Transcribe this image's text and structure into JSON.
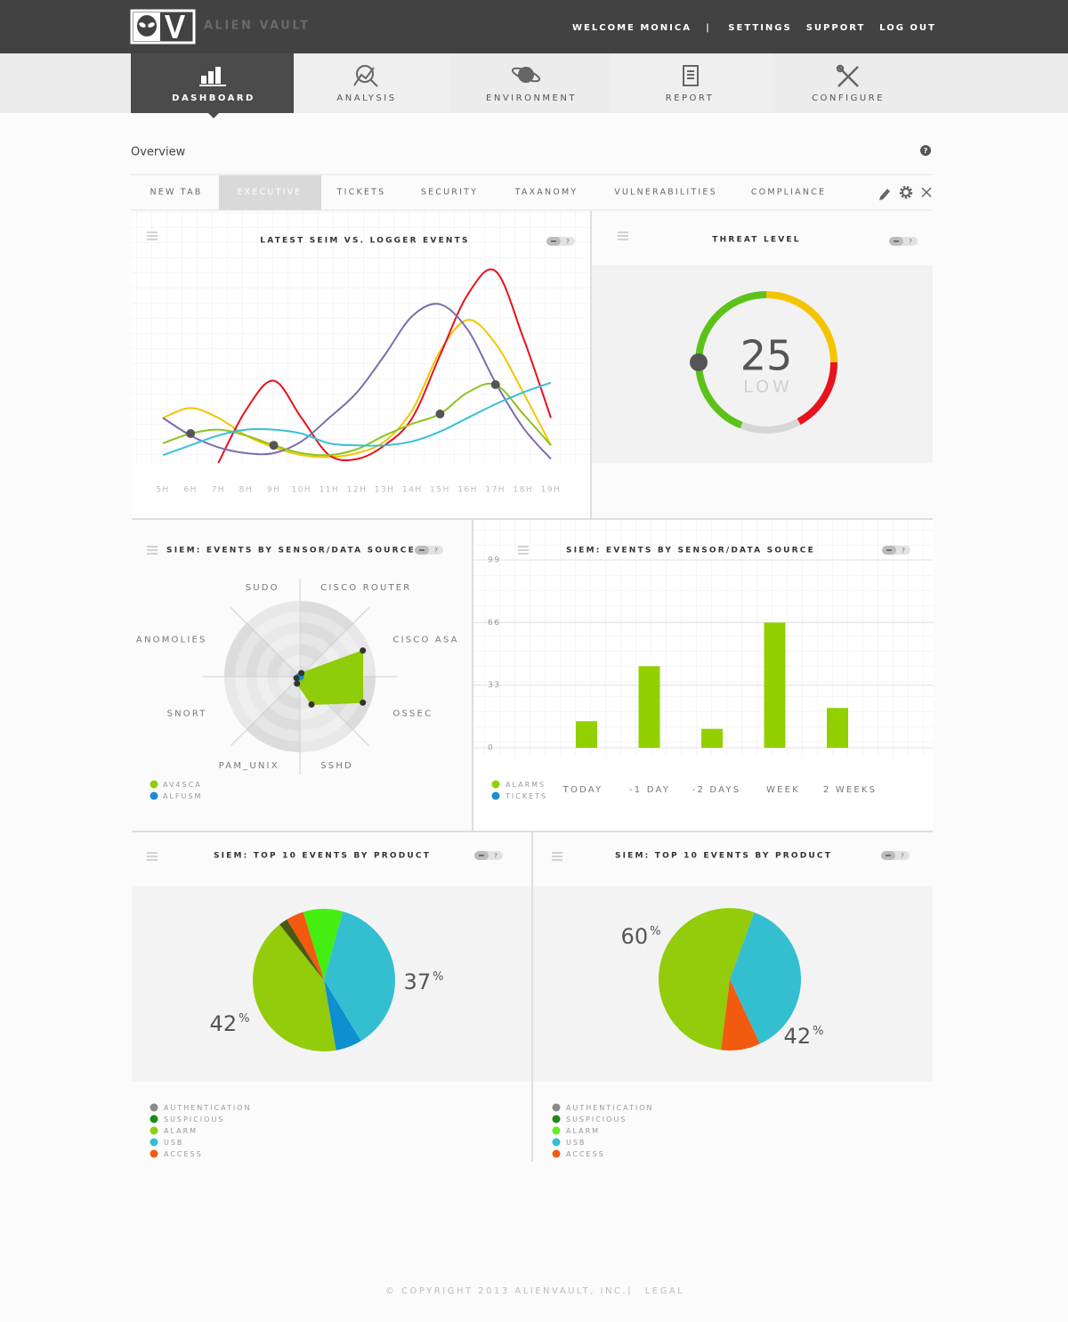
{
  "header": {
    "brand": "ALIEN VAULT",
    "links": [
      "WELCOME MONICA",
      "|",
      "SETTINGS",
      "SUPPORT",
      "LOG OUT"
    ]
  },
  "nav": [
    "DASHBOARD",
    "ANALYSIS",
    "ENVIRONMENT",
    "REPORT",
    "CONFIGURE"
  ],
  "overview": "Overview",
  "help": "?",
  "tabs": [
    "NEW TAB",
    "EXECUTIVE",
    "TICKETS",
    "SECURITY",
    "TAXANOMY",
    "VULNERABILITIES",
    "COMPLIANCE"
  ],
  "chart_data": [
    {
      "type": "line",
      "title": "LATEST SEIM VS. LOGGER EVENTS",
      "categories": [
        "5H",
        "6H",
        "7H",
        "8H",
        "9H",
        "10H",
        "11H",
        "12H",
        "13H",
        "14H",
        "15H",
        "16H",
        "17H",
        "18H",
        "19H"
      ],
      "ylim": [
        0,
        100
      ],
      "series": [
        {
          "color": "#f2c500",
          "values": [
            23,
            28,
            23,
            14,
            8,
            4,
            3,
            5,
            11,
            27,
            57,
            73,
            61,
            36,
            9
          ]
        },
        {
          "color": "#e8121c",
          "values": [
            null,
            null,
            0,
            27,
            42,
            23,
            4,
            2,
            9,
            23,
            55,
            86,
            98,
            64,
            23
          ]
        },
        {
          "color": "#7b6db0",
          "values": [
            23,
            14,
            8,
            5,
            5,
            11,
            23,
            36,
            55,
            75,
            81,
            68,
            41,
            18,
            2
          ]
        },
        {
          "color": "#8dc21f",
          "values": [
            10,
            15,
            17,
            14,
            9,
            5,
            4,
            7,
            14,
            20,
            25,
            36,
            40,
            25,
            9
          ]
        },
        {
          "color": "#37c0d8",
          "values": [
            4,
            9,
            14,
            17,
            17,
            15,
            10,
            9,
            9,
            11,
            16,
            23,
            30,
            36,
            41
          ]
        }
      ]
    },
    {
      "type": "gauge",
      "title": "THREAT LEVEL",
      "value": 25,
      "label": "LOW",
      "ylim": [
        0,
        100
      ]
    },
    {
      "type": "radar",
      "title": "SIEM: EVENTS BY SENSOR/DATA SOURCE",
      "categories": [
        "SUDO",
        "CISCO ROUTER",
        "CISCO ASA",
        "OSSEC",
        "SSHD",
        "PAM_UNIX",
        "SNORT",
        "ANOMOLIES"
      ],
      "rlim": [
        0,
        100
      ],
      "series": [
        {
          "name": "AV4SCA",
          "color": "#8fcc0a",
          "values": [
            0,
            5,
            90,
            90,
            40,
            10,
            5,
            0
          ]
        },
        {
          "name": "ALFUSM",
          "color": "#1a8fd0",
          "values": [
            0,
            0,
            0,
            0,
            0,
            0,
            0,
            0
          ]
        }
      ]
    },
    {
      "type": "bar",
      "title": "SIEM: EVENTS BY SENSOR/DATA SOURCE",
      "categories": [
        "TODAY",
        "-1 DAY",
        "-2 DAYS",
        "WEEK",
        "2 WEEKS"
      ],
      "ylim": [
        0,
        99
      ],
      "yticks": [
        0,
        33,
        66,
        99
      ],
      "grid": true,
      "series": [
        {
          "name": "ALARMS",
          "color": "#92d000",
          "values": [
            14,
            43,
            10,
            66,
            21
          ]
        },
        {
          "name": "TICKETS",
          "color": "#1a8fd0",
          "values": [
            null,
            null,
            null,
            null,
            null
          ]
        }
      ]
    },
    {
      "type": "pie",
      "title": "SIEM: TOP 10 EVENTS BY PRODUCT",
      "unit": "%",
      "values": [
        9,
        37,
        6,
        42,
        2,
        4
      ],
      "colors": [
        "#44ee11",
        "#33bfd0",
        "#0e8fd0",
        "#92cc0a",
        "#4b5a12",
        "#f25a10"
      ],
      "legend": [
        {
          "name": "AUTHENTICATION",
          "color": "#8a8a8a"
        },
        {
          "name": "SUSPICIOUS",
          "color": "#1e8a1e"
        },
        {
          "name": "ALARM",
          "color": "#8fd10a"
        },
        {
          "name": "USB",
          "color": "#33bfd0"
        },
        {
          "name": "ACCESS",
          "color": "#f25a10"
        }
      ]
    },
    {
      "type": "pie",
      "title": "SIEM: TOP 10 EVENTS BY PRODUCT",
      "unit": "%",
      "values": [
        42,
        10,
        60
      ],
      "colors": [
        "#33bfd0",
        "#f25a10",
        "#92cc0a"
      ],
      "legend": [
        {
          "name": "AUTHENTICATION",
          "color": "#8a8a8a"
        },
        {
          "name": "SUSPICIOUS",
          "color": "#1e8a1e"
        },
        {
          "name": "ALARM",
          "color": "#66ee22"
        },
        {
          "name": "USB",
          "color": "#33bfd0"
        },
        {
          "name": "ACCESS",
          "color": "#f25a10"
        }
      ]
    }
  ],
  "footer": [
    "© COPYRIGHT 2013 ALIENVAULT, INC.",
    "|",
    "LEGAL"
  ]
}
